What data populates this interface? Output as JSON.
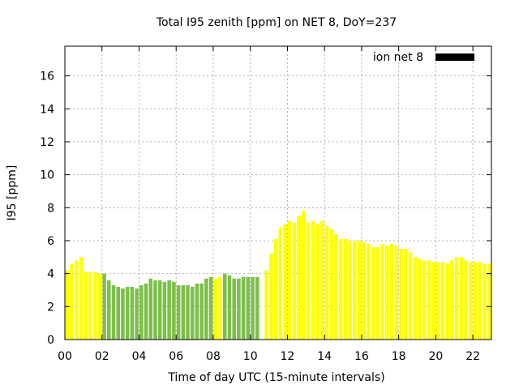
{
  "chart_data": {
    "type": "bar",
    "title": "Total I95 zenith [ppm] on NET 8, DoY=237",
    "xlabel": "Time of day UTC (15-minute intervals)",
    "ylabel": "I95 [ppm]",
    "xlim": [
      0,
      23
    ],
    "ylim": [
      0,
      17.8
    ],
    "xticks": [
      0,
      2,
      4,
      6,
      8,
      10,
      12,
      14,
      16,
      18,
      20,
      22
    ],
    "xtick_labels": [
      "00",
      "02",
      "04",
      "06",
      "08",
      "10",
      "12",
      "14",
      "16",
      "18",
      "20",
      "22"
    ],
    "yticks": [
      0,
      2,
      4,
      6,
      8,
      10,
      12,
      14,
      16
    ],
    "grid": true,
    "legend": {
      "position": "top-right",
      "label": "ion net 8",
      "color": "#000000"
    },
    "bar_width_hours": 0.2,
    "colors": {
      "yellow": "#ffff00",
      "green": "#7ebf4c"
    },
    "series": [
      {
        "x": [
          0.125,
          0.375,
          0.625,
          0.875,
          1.125,
          1.375,
          1.625,
          1.875,
          2.125,
          2.375,
          2.625,
          2.875,
          3.125,
          3.375,
          3.625,
          3.875,
          4.125,
          4.375,
          4.625,
          4.875,
          5.125,
          5.375,
          5.625,
          5.875,
          6.125,
          6.375,
          6.625,
          6.875,
          7.125,
          7.375,
          7.625,
          7.875,
          8.125,
          8.375,
          8.625,
          8.875,
          9.125,
          9.375,
          9.625,
          9.875,
          10.125,
          10.375,
          10.875,
          11.125,
          11.375,
          11.625,
          11.875,
          12.125,
          12.375,
          12.625,
          12.875,
          13.125,
          13.375,
          13.625,
          13.875,
          14.125,
          14.375,
          14.625,
          14.875,
          15.125,
          15.375,
          15.625,
          15.875,
          16.125,
          16.375,
          16.625,
          16.875,
          17.125,
          17.375,
          17.625,
          17.875,
          18.125,
          18.375,
          18.625,
          18.875,
          19.125,
          19.375,
          19.625,
          19.875,
          20.125,
          20.375,
          20.625,
          20.875,
          21.125,
          21.375,
          21.625,
          21.875,
          22.125,
          22.375,
          22.625,
          22.875
        ],
        "values": [
          4.2,
          4.6,
          4.8,
          5.0,
          4.1,
          4.1,
          4.1,
          4.0,
          4.0,
          3.6,
          3.3,
          3.2,
          3.1,
          3.2,
          3.2,
          3.1,
          3.3,
          3.4,
          3.7,
          3.6,
          3.6,
          3.5,
          3.6,
          3.5,
          3.3,
          3.3,
          3.3,
          3.2,
          3.4,
          3.4,
          3.7,
          3.8,
          3.7,
          3.8,
          4.0,
          3.9,
          3.7,
          3.7,
          3.8,
          3.8,
          3.8,
          3.8,
          4.2,
          5.2,
          6.1,
          6.8,
          7.0,
          7.2,
          7.1,
          7.5,
          7.8,
          7.1,
          7.2,
          7.0,
          7.2,
          6.9,
          6.7,
          6.4,
          6.1,
          6.1,
          6.0,
          6.0,
          6.0,
          5.9,
          5.8,
          5.6,
          5.6,
          5.8,
          5.7,
          5.8,
          5.7,
          5.5,
          5.5,
          5.3,
          5.0,
          4.9,
          4.8,
          4.8,
          4.7,
          4.7,
          4.7,
          4.6,
          4.8,
          5.0,
          5.0,
          4.8,
          4.7,
          4.7,
          4.7,
          4.6,
          4.6
        ],
        "colors": [
          "yellow",
          "yellow",
          "yellow",
          "yellow",
          "yellow",
          "yellow",
          "yellow",
          "yellow",
          "green",
          "green",
          "green",
          "green",
          "green",
          "green",
          "green",
          "green",
          "green",
          "green",
          "green",
          "green",
          "green",
          "green",
          "green",
          "green",
          "green",
          "green",
          "green",
          "green",
          "green",
          "green",
          "green",
          "green",
          "yellow",
          "yellow",
          "green",
          "green",
          "green",
          "green",
          "green",
          "green",
          "green",
          "green",
          "yellow",
          "yellow",
          "yellow",
          "yellow",
          "yellow",
          "yellow",
          "yellow",
          "yellow",
          "yellow",
          "yellow",
          "yellow",
          "yellow",
          "yellow",
          "yellow",
          "yellow",
          "yellow",
          "yellow",
          "yellow",
          "yellow",
          "yellow",
          "yellow",
          "yellow",
          "yellow",
          "yellow",
          "yellow",
          "yellow",
          "yellow",
          "yellow",
          "yellow",
          "yellow",
          "yellow",
          "yellow",
          "yellow",
          "yellow",
          "yellow",
          "yellow",
          "yellow",
          "yellow",
          "yellow",
          "yellow",
          "yellow",
          "yellow",
          "yellow",
          "yellow",
          "yellow",
          "yellow",
          "yellow",
          "yellow",
          "yellow"
        ]
      }
    ]
  }
}
